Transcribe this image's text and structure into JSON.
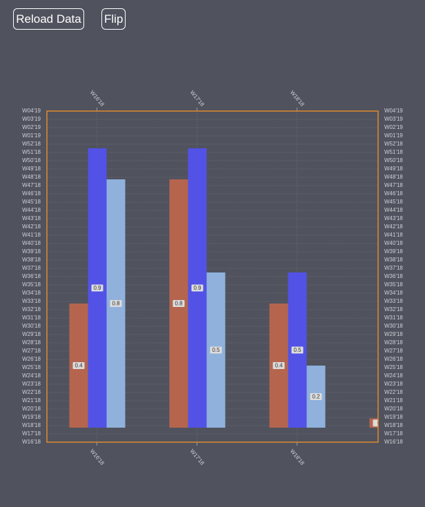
{
  "buttons": [
    "Reload Data",
    "Flip"
  ],
  "chart_data": {
    "type": "bar",
    "categories": [
      "W16'18",
      "W17'18",
      "W18'18",
      null
    ],
    "series": [
      {
        "color": "#b5654d",
        "values": [
          0.4,
          0.8,
          0.4,
          0.03
        ],
        "value_labels": [
          "0.4",
          "0.8",
          "0.4",
          "0"
        ]
      },
      {
        "color": "#5252e6",
        "values": [
          0.9,
          0.9,
          0.5,
          null
        ]
      },
      {
        "color": "#8fb1dc",
        "values": [
          0.8,
          0.5,
          0.2,
          null
        ]
      }
    ],
    "ylim": [
      -0.0467,
      1.02
    ],
    "yticks": [
      {
        "value": -0.0467,
        "label": "W16'18"
      },
      {
        "value": -0.02,
        "label": "W17'18"
      },
      {
        "value": 0.0067,
        "label": "W18'18"
      },
      {
        "value": 0.0333,
        "label": "W19'18"
      },
      {
        "value": 0.06,
        "label": "W20'18"
      },
      {
        "value": 0.0867,
        "label": "W21'18"
      },
      {
        "value": 0.1133,
        "label": "W22'18"
      },
      {
        "value": 0.14,
        "label": "W23'18"
      },
      {
        "value": 0.1667,
        "label": "W24'18"
      },
      {
        "value": 0.1933,
        "label": "W25'18"
      },
      {
        "value": 0.22,
        "label": "W26'18"
      },
      {
        "value": 0.2467,
        "label": "W27'18"
      },
      {
        "value": 0.2733,
        "label": "W28'18"
      },
      {
        "value": 0.3,
        "label": "W29'18"
      },
      {
        "value": 0.3267,
        "label": "W30'18"
      },
      {
        "value": 0.3533,
        "label": "W31'18"
      },
      {
        "value": 0.38,
        "label": "W32'18"
      },
      {
        "value": 0.4067,
        "label": "W33'18"
      },
      {
        "value": 0.4333,
        "label": "W34'18"
      },
      {
        "value": 0.46,
        "label": "W35'18"
      },
      {
        "value": 0.4867,
        "label": "W36'18"
      },
      {
        "value": 0.5133,
        "label": "W37'18"
      },
      {
        "value": 0.54,
        "label": "W38'18"
      },
      {
        "value": 0.5667,
        "label": "W39'18"
      },
      {
        "value": 0.5933,
        "label": "W40'18"
      },
      {
        "value": 0.62,
        "label": "W41'18"
      },
      {
        "value": 0.6467,
        "label": "W42'18"
      },
      {
        "value": 0.6733,
        "label": "W43'18"
      },
      {
        "value": 0.7,
        "label": "W44'18"
      },
      {
        "value": 0.7267,
        "label": "W45'18"
      },
      {
        "value": 0.7533,
        "label": "W46'18"
      },
      {
        "value": 0.78,
        "label": "W47'18"
      },
      {
        "value": 0.8067,
        "label": "W48'18"
      },
      {
        "value": 0.8333,
        "label": "W49'18"
      },
      {
        "value": 0.86,
        "label": "W50'18"
      },
      {
        "value": 0.8867,
        "label": "W51'18"
      },
      {
        "value": 0.9133,
        "label": "W52'18"
      },
      {
        "value": 0.94,
        "label": "W01'19"
      },
      {
        "value": 0.9667,
        "label": "W02'19"
      },
      {
        "value": 0.9933,
        "label": "W03'19"
      },
      {
        "value": 1.02,
        "label": "W04'19"
      }
    ],
    "grid": true,
    "border_color": "#e08a2a"
  }
}
